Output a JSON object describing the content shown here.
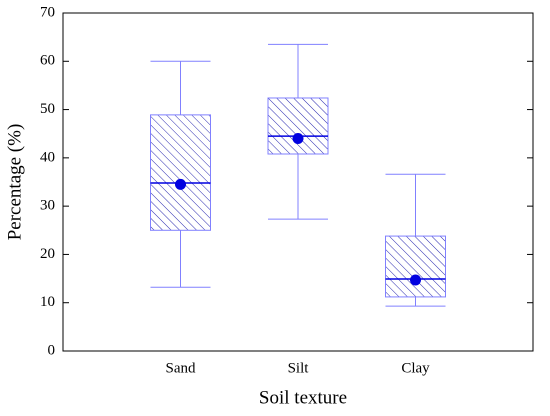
{
  "chart_data": {
    "type": "box",
    "xlabel": "Soil texture",
    "ylabel": "Percentage (%)",
    "categories": [
      "Sand",
      "Silt",
      "Clay"
    ],
    "whisker_low": [
      13.2,
      27.3,
      9.3
    ],
    "q1": [
      25.0,
      40.8,
      11.2
    ],
    "median": [
      34.8,
      44.5,
      14.9
    ],
    "q3": [
      48.9,
      52.4,
      23.8
    ],
    "whisker_high": [
      60,
      63.5,
      36.6
    ],
    "mean": [
      34.5,
      44,
      14.7
    ],
    "color": "#8080ff",
    "mean_color": "#0000e0",
    "ylim": [
      0,
      70
    ],
    "yticks": [
      0,
      10,
      20,
      30,
      40,
      50,
      60,
      70
    ]
  }
}
